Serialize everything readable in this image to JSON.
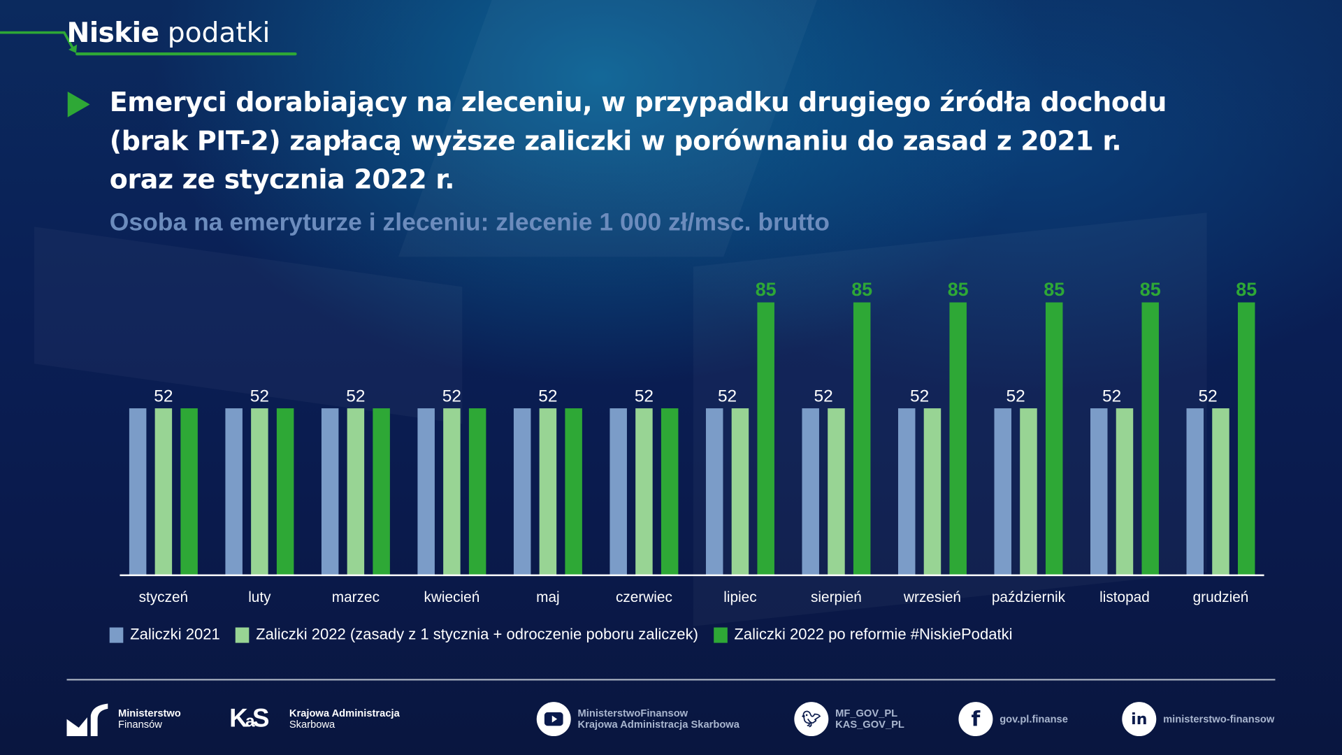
{
  "header": {
    "brand_bold": "Niskie",
    "brand_light": "podatki"
  },
  "title": {
    "lines": [
      "Emeryci dorabiający na zleceniu, w przypadku drugiego źródła dochodu",
      "(brak PIT-2) zapłacą wyższe zaliczki w porównaniu do zasad z 2021 r.",
      "oraz ze stycznia 2022 r."
    ]
  },
  "subtitle": "Osoba na emeryturze i zleceniu: zlecenie 1 000 zł/msc. brutto",
  "colors": {
    "accent": "#2ea836",
    "series1": "#7b9cc8",
    "series2": "#98d494",
    "series3": "#2ea836",
    "subtitle": "#6c8cbd"
  },
  "chart_data": {
    "type": "bar",
    "categories": [
      "styczeń",
      "luty",
      "marzec",
      "kwiecień",
      "maj",
      "czerwiec",
      "lipiec",
      "sierpień",
      "wrzesień",
      "październik",
      "listopad",
      "grudzień"
    ],
    "series": [
      {
        "name": "Zaliczki 2021",
        "values": [
          52,
          52,
          52,
          52,
          52,
          52,
          52,
          52,
          52,
          52,
          52,
          52
        ]
      },
      {
        "name": "Zaliczki 2022 (zasady z 1 stycznia + odroczenie poboru zaliczek)",
        "values": [
          52,
          52,
          52,
          52,
          52,
          52,
          52,
          52,
          52,
          52,
          52,
          52
        ]
      },
      {
        "name": "Zaliczki 2022 po reformie #NiskiePodatki",
        "values": [
          52,
          52,
          52,
          52,
          52,
          52,
          85,
          85,
          85,
          85,
          85,
          85
        ]
      }
    ],
    "data_labels": {
      "shared": "52",
      "high": "85"
    },
    "ylim": [
      0,
      90
    ],
    "grid": false,
    "legend": "bottom",
    "y_axis_shown": false
  },
  "footer": {
    "mf": [
      "Ministerstwo",
      "Finansów"
    ],
    "kas": [
      "Krajowa Administracja",
      "Skarbowa"
    ],
    "youtube": [
      "MinisterstwoFinansow",
      "Krajowa Administracja Skarbowa"
    ],
    "twitter": [
      "MF_GOV_PL",
      "KAS_GOV_PL"
    ],
    "facebook": "gov.pl.finanse",
    "linkedin": "ministerstwo-finansow",
    "icons": {
      "youtube": "youtube-icon",
      "twitter": "twitter-icon",
      "facebook": "facebook-icon",
      "linkedin": "linkedin-icon"
    }
  }
}
